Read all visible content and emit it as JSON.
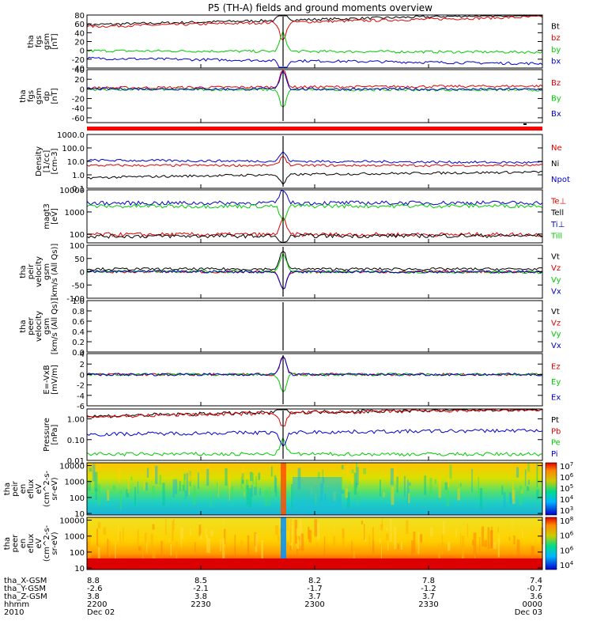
{
  "title": "P5 (TH-A) fields and ground moments overview",
  "colors": {
    "black": "#000000",
    "red": "#e00000",
    "green": "#00cc00",
    "blue": "#0000cc",
    "flag": "#ff0000"
  },
  "time_axis": {
    "rows": [
      {
        "label": "tha_X-GSM",
        "values": [
          "8.8",
          "8.5",
          "8.2",
          "7.8",
          "7.4"
        ]
      },
      {
        "label": "tha_Y-GSM",
        "values": [
          "-2.6",
          "-2.1",
          "-1.7",
          "-1.2",
          "-0.7"
        ]
      },
      {
        "label": "tha_Z-GSM",
        "values": [
          "3.8",
          "3.8",
          "3.7",
          "3.7",
          "3.6"
        ]
      },
      {
        "label": "hhmm",
        "values": [
          "2200",
          "2230",
          "2300",
          "2330",
          "0000"
        ]
      },
      {
        "label": "2010",
        "values": [
          "Dec 02",
          "",
          "",
          "",
          "Dec 03"
        ]
      }
    ]
  },
  "chart_data": [
    {
      "type": "line",
      "panel": "fgs_gsm",
      "ylabel": [
        "tha",
        "fgs",
        "gsm",
        "[nT]"
      ],
      "ylim": [
        -40,
        80
      ],
      "yticks": [
        "-40",
        "-20",
        "0",
        "20",
        "40",
        "60",
        "80"
      ],
      "series": [
        {
          "name": "Bt",
          "color": "black",
          "level": 58,
          "end": 82
        },
        {
          "name": "bz",
          "color": "red",
          "level": 54,
          "end": 76
        },
        {
          "name": "by",
          "color": "green",
          "level": -1,
          "end": -4
        },
        {
          "name": "bx",
          "color": "blue",
          "level": -18,
          "end": -30
        }
      ]
    },
    {
      "type": "line",
      "panel": "fgs_gsm_dp",
      "ylabel": [
        "tha",
        "fgs",
        "gsm",
        "dp",
        "[nT]"
      ],
      "ylim": [
        -70,
        40
      ],
      "yticks": [
        "-60",
        "-40",
        "-20",
        "0",
        "20",
        "40"
      ],
      "series": [
        {
          "name": "Bz",
          "color": "red",
          "level": 2,
          "end": 6
        },
        {
          "name": "By",
          "color": "green",
          "level": -1,
          "end": -2
        },
        {
          "name": "Bx",
          "color": "blue",
          "level": 0,
          "end": -1
        }
      ]
    },
    {
      "type": "line",
      "panel": "density",
      "ylabel": [
        "Density",
        "[1/cc]",
        "[cm-3]"
      ],
      "scale": "log",
      "ylim": [
        0.1,
        1000
      ],
      "yticks": [
        "0.1",
        "1.0",
        "10.0",
        "100.0",
        "1000.0"
      ],
      "series": [
        {
          "name": "Ne",
          "color": "red",
          "level": 5,
          "end": 5
        },
        {
          "name": "Ni",
          "color": "black",
          "level": 0.6,
          "end": 1.6
        },
        {
          "name": "Npot",
          "color": "blue",
          "level": 12,
          "end": 8
        }
      ]
    },
    {
      "type": "line",
      "panel": "temperature",
      "ylabel": [
        "magt3",
        "[eV]"
      ],
      "scale": "log",
      "ylim": [
        40,
        10000
      ],
      "yticks": [
        "100",
        "1000",
        "10000"
      ],
      "series": [
        {
          "name": "Te⊥",
          "color": "red",
          "level": 95,
          "end": 95
        },
        {
          "name": "Tell",
          "color": "black",
          "level": 80,
          "end": 85
        },
        {
          "name": "Ti⊥",
          "color": "blue",
          "level": 2500,
          "end": 2600
        },
        {
          "name": "Till",
          "color": "green",
          "level": 1800,
          "end": 1900
        }
      ]
    },
    {
      "type": "line",
      "panel": "peir_velocity",
      "ylabel": [
        "tha",
        "peir",
        "velocity",
        "gsm",
        "[km/s (All Qs)]"
      ],
      "ylim": [
        -100,
        100
      ],
      "yticks": [
        "-100",
        "-50",
        "0",
        "50",
        "100"
      ],
      "series": [
        {
          "name": "Vt",
          "color": "black",
          "level": 10,
          "end": 10
        },
        {
          "name": "Vz",
          "color": "red",
          "level": 0,
          "end": 0
        },
        {
          "name": "Vy",
          "color": "green",
          "level": 2,
          "end": -2
        },
        {
          "name": "Vx",
          "color": "blue",
          "level": 0,
          "end": 0
        }
      ]
    },
    {
      "type": "line",
      "panel": "peer_velocity",
      "ylabel": [
        "tha",
        "peer",
        "velocity",
        "gsm",
        "[km/s (All Qs)]"
      ],
      "ylim": [
        0,
        1
      ],
      "yticks": [
        "0.0",
        "0.2",
        "0.4",
        "0.6",
        "0.8",
        "1.0"
      ],
      "series": [
        {
          "name": "Vt",
          "color": "black",
          "empty": true
        },
        {
          "name": "Vz",
          "color": "red",
          "empty": true
        },
        {
          "name": "Vy",
          "color": "green",
          "empty": true
        },
        {
          "name": "Vx",
          "color": "blue",
          "empty": true
        }
      ]
    },
    {
      "type": "line",
      "panel": "efield",
      "ylabel": [
        "E=-VxB",
        "[mV/m]"
      ],
      "ylim": [
        -6,
        4
      ],
      "yticks": [
        "-6",
        "-4",
        "-2",
        "0",
        "2",
        "4"
      ],
      "series": [
        {
          "name": "Ez",
          "color": "red",
          "level": 0,
          "end": 0
        },
        {
          "name": "Ey",
          "color": "green",
          "level": 0,
          "end": 0
        },
        {
          "name": "Ex",
          "color": "blue",
          "level": 0,
          "end": 0
        }
      ]
    },
    {
      "type": "line",
      "panel": "pressure",
      "ylabel": [
        "Pressure",
        "[nPa]"
      ],
      "scale": "log",
      "ylim": [
        0.01,
        3
      ],
      "yticks": [
        "0.01",
        "0.10",
        "1.00"
      ],
      "series": [
        {
          "name": "Pt",
          "color": "black",
          "level": 1.3,
          "end": 3
        },
        {
          "name": "Pb",
          "color": "red",
          "level": 1.25,
          "end": 2.8
        },
        {
          "name": "Pe",
          "color": "green",
          "level": 0.02,
          "end": 0.02
        },
        {
          "name": "Pi",
          "color": "blue",
          "level": 0.18,
          "end": 0.28
        }
      ]
    },
    {
      "type": "heatmap",
      "panel": "peir_eflux",
      "ylabel": [
        "tha",
        "peir",
        "en",
        "eflux",
        "eV",
        "(cm^2-s-",
        "sr-eV)"
      ],
      "scale": "log",
      "ylim": [
        8,
        15000
      ],
      "yticks": [
        "10",
        "100",
        "1000",
        "10000"
      ],
      "colorbar": [
        "10^3",
        "10^4",
        "10^5",
        "10^6",
        "10^7"
      ]
    },
    {
      "type": "heatmap",
      "panel": "peer_eflux",
      "ylabel": [
        "tha",
        "peer",
        "en",
        "eflux",
        "eV",
        "(cm^2-s-",
        "sr-eV)"
      ],
      "scale": "log",
      "ylim": [
        8,
        15000
      ],
      "yticks": [
        "10",
        "100",
        "1000",
        "10000"
      ],
      "colorbar": [
        "10^4",
        "10^6",
        "10^6",
        "10^8"
      ]
    }
  ]
}
